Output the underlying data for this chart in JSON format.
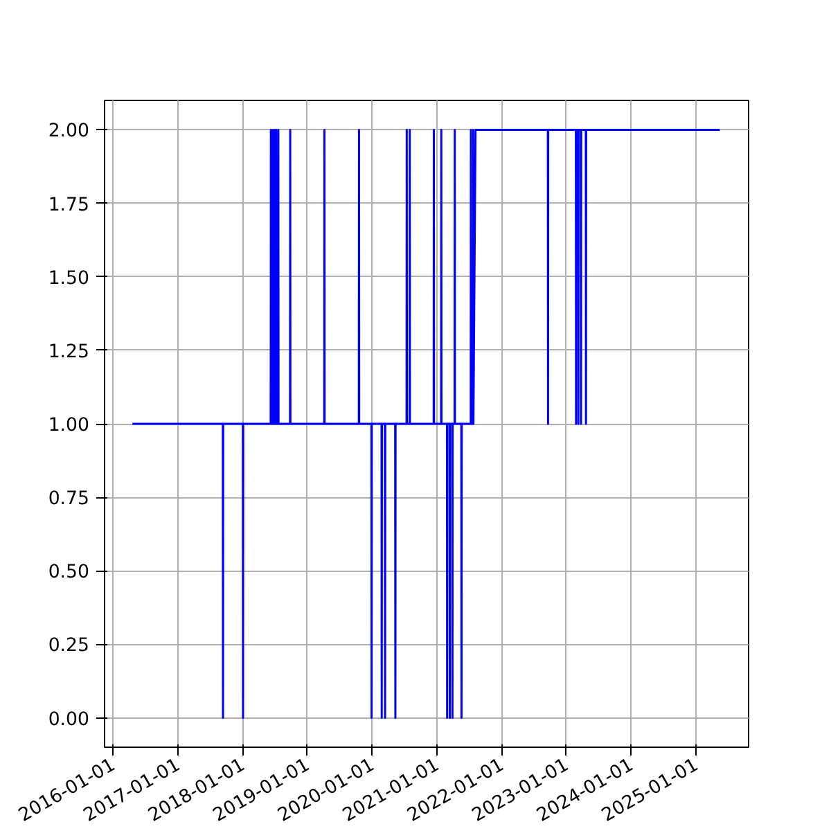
{
  "chart_data": {
    "type": "line",
    "grid": true,
    "xlim": [
      "2015-11-15",
      "2025-10-25"
    ],
    "ylim": [
      -0.1,
      2.1
    ],
    "xticks": [
      "2016-01-01",
      "2017-01-01",
      "2018-01-01",
      "2019-01-01",
      "2020-01-01",
      "2021-01-01",
      "2022-01-01",
      "2023-01-01",
      "2024-01-01",
      "2025-01-01"
    ],
    "yticks": [
      {
        "value": 0,
        "label": "0.00"
      },
      {
        "value": 0.25,
        "label": "0.25"
      },
      {
        "value": 0.5,
        "label": "0.50"
      },
      {
        "value": 0.75,
        "label": "0.75"
      },
      {
        "value": 1,
        "label": "1.00"
      },
      {
        "value": 1.25,
        "label": "1.25"
      },
      {
        "value": 1.5,
        "label": "1.50"
      },
      {
        "value": 1.75,
        "label": "1.75"
      },
      {
        "value": 2,
        "label": "2.00"
      }
    ],
    "series": [
      {
        "color": "#0000ff",
        "x": [
          "2016-04-20",
          "2017-09-12",
          "2017-09-13",
          "2017-09-14",
          "2018-01-03",
          "2018-01-04",
          "2018-01-05",
          "2018-06-09",
          "2018-06-10",
          "2018-06-11",
          "2018-06-19",
          "2018-06-20",
          "2018-06-21",
          "2018-06-30",
          "2018-07-01",
          "2018-07-02",
          "2018-07-09",
          "2018-07-10",
          "2018-07-11",
          "2018-07-21",
          "2018-07-22",
          "2018-07-23",
          "2018-09-26",
          "2018-09-27",
          "2018-09-28",
          "2019-04-07",
          "2019-04-08",
          "2019-04-09",
          "2019-10-19",
          "2019-10-20",
          "2019-10-21",
          "2019-12-29",
          "2019-12-30",
          "2019-12-31",
          "2020-02-24",
          "2020-02-25",
          "2020-02-26",
          "2020-03-14",
          "2020-03-15",
          "2020-03-16",
          "2020-05-11",
          "2020-05-12",
          "2020-05-13",
          "2020-07-14",
          "2020-07-15",
          "2020-07-16",
          "2020-07-31",
          "2020-08-01",
          "2020-08-02",
          "2020-12-14",
          "2020-12-15",
          "2020-12-16",
          "2021-01-25",
          "2021-01-26",
          "2021-01-27",
          "2021-02-27",
          "2021-02-28",
          "2021-03-01",
          "2021-03-14",
          "2021-03-15",
          "2021-03-16",
          "2021-03-29",
          "2021-03-30",
          "2021-03-31",
          "2021-04-11",
          "2021-04-12",
          "2021-04-13",
          "2021-05-19",
          "2021-05-20",
          "2021-05-21",
          "2021-07-11",
          "2021-07-12",
          "2021-07-13",
          "2021-07-24",
          "2021-07-25",
          "2021-07-26",
          "2021-08-07",
          "2022-09-19",
          "2022-09-20",
          "2022-09-21",
          "2023-02-24",
          "2023-02-25",
          "2023-02-26",
          "2023-03-09",
          "2023-03-10",
          "2023-03-11",
          "2023-03-24",
          "2023-03-25",
          "2023-03-26",
          "2023-04-21",
          "2023-04-22",
          "2023-04-23",
          "2025-05-15"
        ],
        "values": [
          1,
          1,
          0,
          1,
          1,
          0,
          1,
          1,
          2,
          1,
          1,
          2,
          1,
          1,
          2,
          1,
          1,
          2,
          1,
          1,
          2,
          1,
          1,
          2,
          1,
          1,
          2,
          1,
          1,
          2,
          1,
          1,
          0,
          1,
          1,
          0,
          1,
          1,
          0,
          1,
          1,
          0,
          1,
          1,
          2,
          1,
          1,
          2,
          1,
          1,
          2,
          1,
          1,
          2,
          1,
          1,
          0,
          1,
          1,
          0,
          1,
          1,
          0,
          1,
          1,
          2,
          1,
          1,
          0,
          1,
          1,
          2,
          1,
          1,
          2,
          1,
          2,
          2,
          1,
          2,
          2,
          1,
          2,
          2,
          1,
          2,
          2,
          1,
          2,
          2,
          1,
          2,
          2
        ]
      }
    ]
  }
}
